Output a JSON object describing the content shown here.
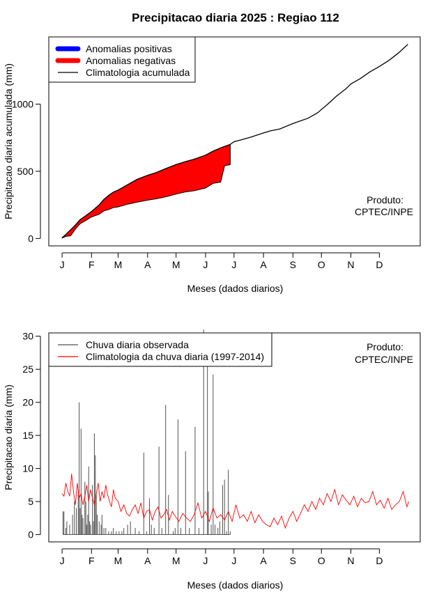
{
  "title": "Precipitacao diaria 2025 : Regiao 112",
  "colors": {
    "positive": "#0000ff",
    "negative": "#ff0000",
    "climatology": "#000000",
    "observed": "#505050",
    "daily_climatology": "#ff0000"
  },
  "chart_data": [
    {
      "type": "area",
      "xlabel": "Meses (dados diarios)",
      "ylabel": "Precipitacao diaria acumulada (mm)",
      "x_unit": "day of year",
      "x_ticks": [
        {
          "label": "J",
          "day": 1
        },
        {
          "label": "F",
          "day": 32
        },
        {
          "label": "M",
          "day": 60
        },
        {
          "label": "A",
          "day": 91
        },
        {
          "label": "M",
          "day": 121
        },
        {
          "label": "J",
          "day": 152
        },
        {
          "label": "J",
          "day": 182
        },
        {
          "label": "A",
          "day": 213
        },
        {
          "label": "S",
          "day": 244
        },
        {
          "label": "O",
          "day": 274
        },
        {
          "label": "N",
          "day": 305
        },
        {
          "label": "D",
          "day": 335
        }
      ],
      "y_ticks": [
        0,
        500,
        1000
      ],
      "ylim": [
        -55,
        1500
      ],
      "xlim": [
        -13,
        378
      ],
      "legend_position": "top-left",
      "legend": [
        {
          "label": "Anomalias positivas",
          "kind": "positive"
        },
        {
          "label": "Anomalias negativas",
          "kind": "negative"
        },
        {
          "label": "Climatologia acumulada",
          "kind": "climatology"
        }
      ],
      "annotation": [
        "Produto:",
        "CPTEC/INPE"
      ],
      "series": [
        {
          "name": "Climatologia acumulada",
          "x": [
            1,
            5,
            10,
            15,
            20,
            25,
            32,
            40,
            45,
            50,
            55,
            60,
            70,
            80,
            91,
            100,
            110,
            121,
            130,
            140,
            152,
            160,
            170,
            178,
            182,
            190,
            200,
            213,
            220,
            230,
            244,
            250,
            260,
            270,
            274,
            280,
            290,
            300,
            305,
            315,
            325,
            335,
            345,
            355,
            365
          ],
          "y": [
            5,
            30,
            65,
            100,
            140,
            165,
            200,
            250,
            290,
            320,
            345,
            360,
            400,
            440,
            470,
            490,
            520,
            550,
            570,
            590,
            620,
            650,
            680,
            700,
            720,
            735,
            755,
            785,
            800,
            815,
            855,
            870,
            895,
            935,
            960,
            995,
            1060,
            1115,
            1150,
            1190,
            1240,
            1280,
            1325,
            1380,
            1445
          ]
        },
        {
          "name": "observed accumulated",
          "x": [
            1,
            5,
            10,
            15,
            20,
            25,
            32,
            40,
            45,
            50,
            55,
            60,
            70,
            80,
            91,
            100,
            110,
            121,
            130,
            140,
            152,
            160,
            168,
            172,
            178
          ],
          "y": [
            3,
            15,
            20,
            70,
            110,
            130,
            160,
            180,
            205,
            215,
            230,
            235,
            255,
            270,
            285,
            295,
            310,
            330,
            345,
            355,
            375,
            410,
            420,
            540,
            550
          ]
        }
      ]
    },
    {
      "type": "bar",
      "xlabel": "Meses (dados diarios)",
      "ylabel": "Precipitacao diaria (mm)",
      "x_unit": "day of year",
      "x_ticks": [
        {
          "label": "J",
          "day": 1
        },
        {
          "label": "F",
          "day": 32
        },
        {
          "label": "M",
          "day": 60
        },
        {
          "label": "A",
          "day": 91
        },
        {
          "label": "M",
          "day": 121
        },
        {
          "label": "J",
          "day": 152
        },
        {
          "label": "J",
          "day": 182
        },
        {
          "label": "A",
          "day": 213
        },
        {
          "label": "S",
          "day": 244
        },
        {
          "label": "O",
          "day": 274
        },
        {
          "label": "N",
          "day": 305
        },
        {
          "label": "D",
          "day": 335
        }
      ],
      "y_ticks": [
        0,
        5,
        10,
        15,
        20,
        25,
        30
      ],
      "ylim": [
        -1.1,
        30.5
      ],
      "xlim": [
        -13,
        378
      ],
      "legend_position": "top-left",
      "legend": [
        {
          "label": "Chuva diaria observada",
          "kind": "observed"
        },
        {
          "label": "Climatologia da chuva diaria (1997-2014)",
          "kind": "daily_climatology"
        }
      ],
      "annotation": [
        "Produto:",
        "CPTEC/INPE"
      ],
      "series": [
        {
          "name": "Chuva diaria observada",
          "type": "bar",
          "x": [
            2,
            3,
            5,
            6,
            9,
            12,
            14,
            16,
            18,
            19,
            20,
            21,
            22,
            23,
            25,
            26,
            27,
            28,
            29,
            30,
            31,
            33,
            34,
            35,
            36,
            37,
            38,
            40,
            42,
            43,
            45,
            47,
            50,
            53,
            55,
            58,
            61,
            64,
            66,
            70,
            73,
            78,
            82,
            87,
            90,
            93,
            95,
            98,
            103,
            106,
            110,
            113,
            118,
            120,
            123,
            126,
            131,
            135,
            141,
            145,
            150,
            154,
            155,
            158,
            160,
            162,
            165,
            167,
            170,
            172,
            174,
            176,
            178
          ],
          "y": [
            3.5,
            3.5,
            1,
            2,
            1.5,
            3,
            5,
            4,
            6,
            20,
            4,
            16,
            3,
            2.5,
            8,
            5,
            1.5,
            3,
            10.3,
            2,
            1.5,
            7.5,
            2,
            15.3,
            12,
            6,
            3,
            2,
            1.5,
            3,
            1,
            1,
            0.5,
            0.5,
            1,
            0.5,
            0.5,
            0.5,
            1,
            1.5,
            2,
            1,
            0.5,
            12.4,
            0.5,
            5.5,
            1.5,
            1,
            13.3,
            1,
            19.6,
            6,
            0.5,
            1,
            17.4,
            1,
            12.6,
            1,
            16.3,
            1,
            31,
            28,
            6.5,
            1.5,
            24.2,
            1.5,
            1,
            2,
            7.5,
            8.3,
            0.5,
            9.8,
            0.5
          ]
        },
        {
          "name": "Climatologia da chuva diaria (1997-2014)",
          "type": "line",
          "x": [
            1,
            3,
            5,
            7,
            9,
            11,
            13,
            15,
            17,
            19,
            21,
            23,
            25,
            27,
            29,
            31,
            33,
            35,
            37,
            39,
            41,
            43,
            45,
            47,
            49,
            51,
            53,
            55,
            57,
            60,
            63,
            66,
            69,
            72,
            75,
            78,
            81,
            84,
            87,
            90,
            93,
            96,
            99,
            102,
            105,
            108,
            111,
            114,
            117,
            120,
            124,
            128,
            132,
            136,
            140,
            144,
            148,
            152,
            156,
            160,
            164,
            168,
            172,
            176,
            180,
            184,
            188,
            192,
            196,
            200,
            204,
            208,
            212,
            216,
            220,
            224,
            228,
            232,
            236,
            240,
            244,
            248,
            252,
            256,
            260,
            264,
            268,
            272,
            276,
            280,
            284,
            288,
            292,
            296,
            300,
            304,
            308,
            312,
            316,
            320,
            324,
            328,
            332,
            336,
            340,
            344,
            348,
            352,
            356,
            360,
            364,
            366
          ],
          "y": [
            6.2,
            5.8,
            7.8,
            6.5,
            5.8,
            9.2,
            6.5,
            4.5,
            7.8,
            5.5,
            6.2,
            4.5,
            5.8,
            7.5,
            5.0,
            6.8,
            5.5,
            4.5,
            6.2,
            7.8,
            5.0,
            6.5,
            5.5,
            7.5,
            6.0,
            5.0,
            4.2,
            6.8,
            5.5,
            5.0,
            3.5,
            4.5,
            3.2,
            2.8,
            3.8,
            4.5,
            3.2,
            4.8,
            2.5,
            3.5,
            3.8,
            2.2,
            3.5,
            4.2,
            2.5,
            3.0,
            3.8,
            2.2,
            3.5,
            2.8,
            2.0,
            3.2,
            2.5,
            2.0,
            3.0,
            4.8,
            2.5,
            3.5,
            2.0,
            4.0,
            2.5,
            3.0,
            2.2,
            3.5,
            2.0,
            4.5,
            2.5,
            3.0,
            2.0,
            3.5,
            1.8,
            3.0,
            2.0,
            1.5,
            1.2,
            2.5,
            1.5,
            2.8,
            1.0,
            2.5,
            3.5,
            2.0,
            3.2,
            4.5,
            3.5,
            5.0,
            3.8,
            5.5,
            4.5,
            6.2,
            5.0,
            6.8,
            4.5,
            6.0,
            5.2,
            4.5,
            5.8,
            4.2,
            5.5,
            4.8,
            5.0,
            6.5,
            4.5,
            5.2,
            4.0,
            5.5,
            3.8,
            4.5,
            5.0,
            6.5,
            4.2,
            5.0
          ]
        }
      ]
    }
  ]
}
